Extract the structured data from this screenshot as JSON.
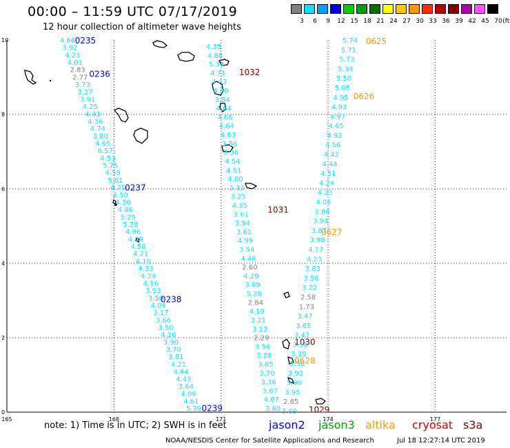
{
  "header": {
    "title": "00:00 – 11:59 UTC 07/17/2019",
    "subtitle": "12 hour collection of altimeter wave heights"
  },
  "legend": {
    "unit": "(ft)",
    "bins": [
      {
        "label": "3",
        "color": "#808080"
      },
      {
        "label": "6",
        "color": "#00e5ff"
      },
      {
        "label": "9",
        "color": "#00a0ff"
      },
      {
        "label": "12",
        "color": "#0000e0"
      },
      {
        "label": "15",
        "color": "#00d000"
      },
      {
        "label": "18",
        "color": "#00a000"
      },
      {
        "label": "21",
        "color": "#007000"
      },
      {
        "label": "24",
        "color": "#ffff00"
      },
      {
        "label": "27",
        "color": "#ffc800"
      },
      {
        "label": "30",
        "color": "#ff9600"
      },
      {
        "label": "33",
        "color": "#ff3000"
      },
      {
        "label": "36",
        "color": "#c00000"
      },
      {
        "label": "39",
        "color": "#800000"
      },
      {
        "label": "42",
        "color": "#b000b0"
      },
      {
        "label": "45",
        "color": "#ff50ff"
      },
      {
        "label": "70",
        "color": "#000000"
      }
    ]
  },
  "axes": {
    "x_ticks": [
      {
        "v": 165,
        "label": "165"
      },
      {
        "v": 168,
        "label": "168"
      },
      {
        "v": 171,
        "label": "171"
      },
      {
        "v": 174,
        "label": "174"
      },
      {
        "v": 177,
        "label": "177"
      }
    ],
    "y_ticks": [
      {
        "v": 0,
        "label": "0"
      },
      {
        "v": 2,
        "label": "2"
      },
      {
        "v": 4,
        "label": "4"
      },
      {
        "v": 6,
        "label": "6"
      },
      {
        "v": 8,
        "label": "8"
      },
      {
        "v": 10,
        "label": "10"
      }
    ],
    "lon_range": [
      165,
      179
    ],
    "lat_range": [
      0,
      10
    ]
  },
  "colors": {
    "swh_normal": "#00e5ff",
    "swh_low": "#808080",
    "jason2": "#0000e0",
    "jason3": "#00a000",
    "altika": "#ff9600",
    "cryosat": "#d00000",
    "s3a": "#800000"
  },
  "tracks": [
    {
      "satellite": "jason2",
      "values": [
        "4.66",
        "3.92",
        "4.23",
        "4.01",
        "2.83",
        "2.77",
        "3.73",
        "3.27",
        "3.91",
        "4.25",
        "4.43",
        "4.36",
        "4.74",
        "3.80",
        "4.65",
        "6.57",
        "4.53",
        "5.75",
        "4.59",
        "5.01",
        "4.75",
        "4.50",
        "4.30",
        "4.86",
        "5.25",
        "5.28",
        "4.96",
        "4.79",
        "4.58",
        "4.21",
        "4.10",
        "4.33",
        "4.74",
        "4.16",
        "3.93",
        "3.56",
        "4.06",
        "3.17",
        "3.66",
        "3.50",
        "4.16",
        "3.90",
        "3.70",
        "3.81",
        "4.21",
        "4.64",
        "4.43",
        "3.64",
        "4.06",
        "4.61",
        "5.39"
      ],
      "times": [
        {
          "label": "0235",
          "lat": 10.0,
          "lon": 167.2
        },
        {
          "label": "0236",
          "lat": 9.1,
          "lon": 167.6
        },
        {
          "label": "0237",
          "lat": 6.05,
          "lon": 168.6
        },
        {
          "label": "0238",
          "lat": 3.05,
          "lon": 169.6
        },
        {
          "label": "0239",
          "lat": 0.12,
          "lon": 170.75
        }
      ]
    },
    {
      "satellite": "s3a",
      "values": [
        "4.35",
        "4.88",
        "5.34",
        "4.71",
        "4.43",
        "4.60",
        "3.84",
        "4.64",
        "4.66",
        "4.64",
        "4.63",
        "3.56",
        "3.36",
        "4.54",
        "4.51",
        "4.60",
        "3.33",
        "3.25",
        "4.35",
        "3.61",
        "3.94",
        "3.61",
        "4.99",
        "3.54",
        "4.46",
        "2.60",
        "4.29",
        "3.69",
        "5.28",
        "2.84",
        "4.10",
        "3.21",
        "3.13",
        "2.29",
        "3.56",
        "3.28",
        "3.65",
        "3.70",
        "3.36",
        "3.67",
        "4.07",
        "3.80"
      ],
      "times": [
        {
          "label": "1032",
          "lat": 9.15,
          "lon": 171.8
        },
        {
          "label": "1031",
          "lat": 5.45,
          "lon": 172.6
        },
        {
          "label": "1030",
          "lat": 1.9,
          "lon": 173.35
        },
        {
          "label": "1029",
          "lat": 0.08,
          "lon": 173.75
        }
      ]
    },
    {
      "satellite": "altika",
      "values": [
        "5.74",
        "5.71",
        "5.73",
        "5.34",
        "5.50",
        "5.05",
        "4.95",
        "4.93",
        "4.97",
        "4.65",
        "4.92",
        "4.56",
        "4.42",
        "4.44",
        "4.51",
        "4.24",
        "4.21",
        "4.05",
        "3.86",
        "3.94",
        "3.87",
        "3.98",
        "4.17",
        "4.23",
        "3.83",
        "3.56",
        "3.22",
        "2.58",
        "1.73",
        "3.47",
        "3.65",
        "3.47",
        "3.58",
        "3.39",
        "3.58",
        "3.92",
        "3.90",
        "3.95",
        "2.85",
        "3.69"
      ],
      "times": [
        {
          "label": "0625",
          "lat": 9.98,
          "lon": 175.35
        },
        {
          "label": "0626",
          "lat": 8.5,
          "lon": 175.0
        },
        {
          "label": "0627",
          "lat": 4.85,
          "lon": 174.1
        },
        {
          "label": "0628",
          "lat": 1.4,
          "lon": 173.35
        }
      ]
    }
  ],
  "footer": {
    "note": "note: 1) Time is in UTC; 2) SWH is in feet",
    "missions": [
      {
        "label": "jason2",
        "color": "#0000e0"
      },
      {
        "label": "jason3",
        "color": "#00a000"
      },
      {
        "label": "altika",
        "color": "#ff9600"
      },
      {
        "label": "cryosat",
        "color": "#d00000"
      },
      {
        "label": "s3a",
        "color": "#800000"
      }
    ],
    "credit": "NOAA/NESDIS Center for Satellite Applications and Research",
    "generated": "Jul 18 12:27:14 UTC 2019"
  }
}
